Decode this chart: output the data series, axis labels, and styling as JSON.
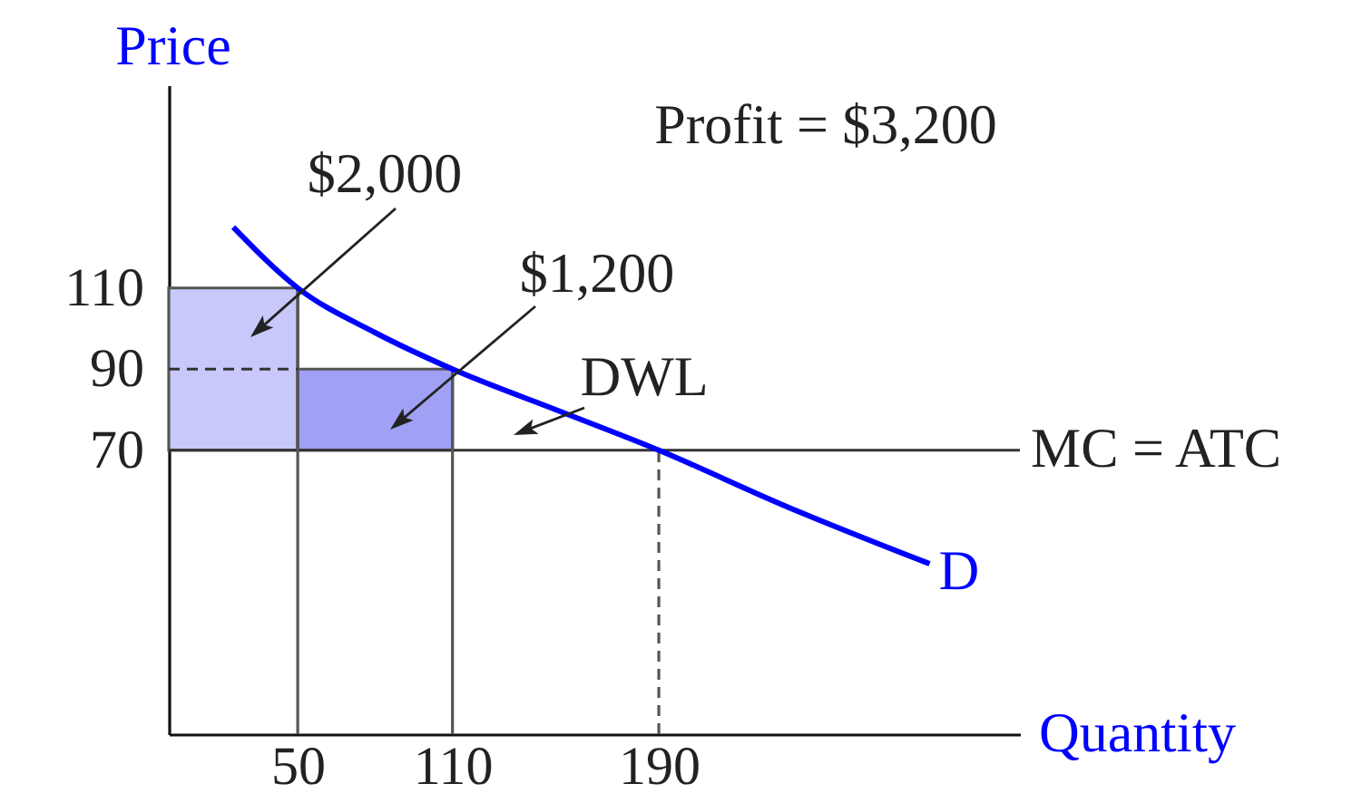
{
  "chart_data": {
    "type": "line",
    "xlabel": "Quantity",
    "ylabel": "Price",
    "xlim": [
      0,
      330
    ],
    "ylim": [
      0,
      160
    ],
    "xticks": [
      50,
      110,
      190
    ],
    "yticks": [
      70,
      90,
      110
    ],
    "series": [
      {
        "type": "histogram",
        "bins": [
          0,
          50,
          110
        ],
        "values": [
          40,
          20
        ],
        "base": [
          70,
          70
        ],
        "colors": [
          "#c8c8fa",
          "#a0a0f5"
        ]
      },
      {
        "color": "#555555",
        "x": [
          50,
          50
        ],
        "values": [
          0,
          110
        ]
      },
      {
        "color": "#333333",
        "line_style": "dashed",
        "x": [
          0,
          50
        ],
        "values": [
          90,
          90
        ]
      },
      {
        "color": "#555555",
        "x": [
          110,
          110
        ],
        "values": [
          0,
          90
        ]
      },
      {
        "color": "#555555",
        "line_style": "dashed",
        "x": [
          190,
          190
        ],
        "values": [
          0,
          70
        ]
      },
      {
        "name": "D",
        "color": "#0000ff",
        "x": [
          25,
          50,
          80,
          110,
          150,
          190,
          240,
          295
        ],
        "values": [
          125,
          110,
          99,
          90,
          80,
          70,
          56,
          42
        ]
      }
    ],
    "ref_lines": [
      {
        "axis": "y",
        "value": 70,
        "label": "MC = ATC",
        "color": "#333333"
      }
    ],
    "annotations": [
      "Profit = $3,200",
      "$2,000",
      "$1,200",
      "DWL"
    ]
  }
}
